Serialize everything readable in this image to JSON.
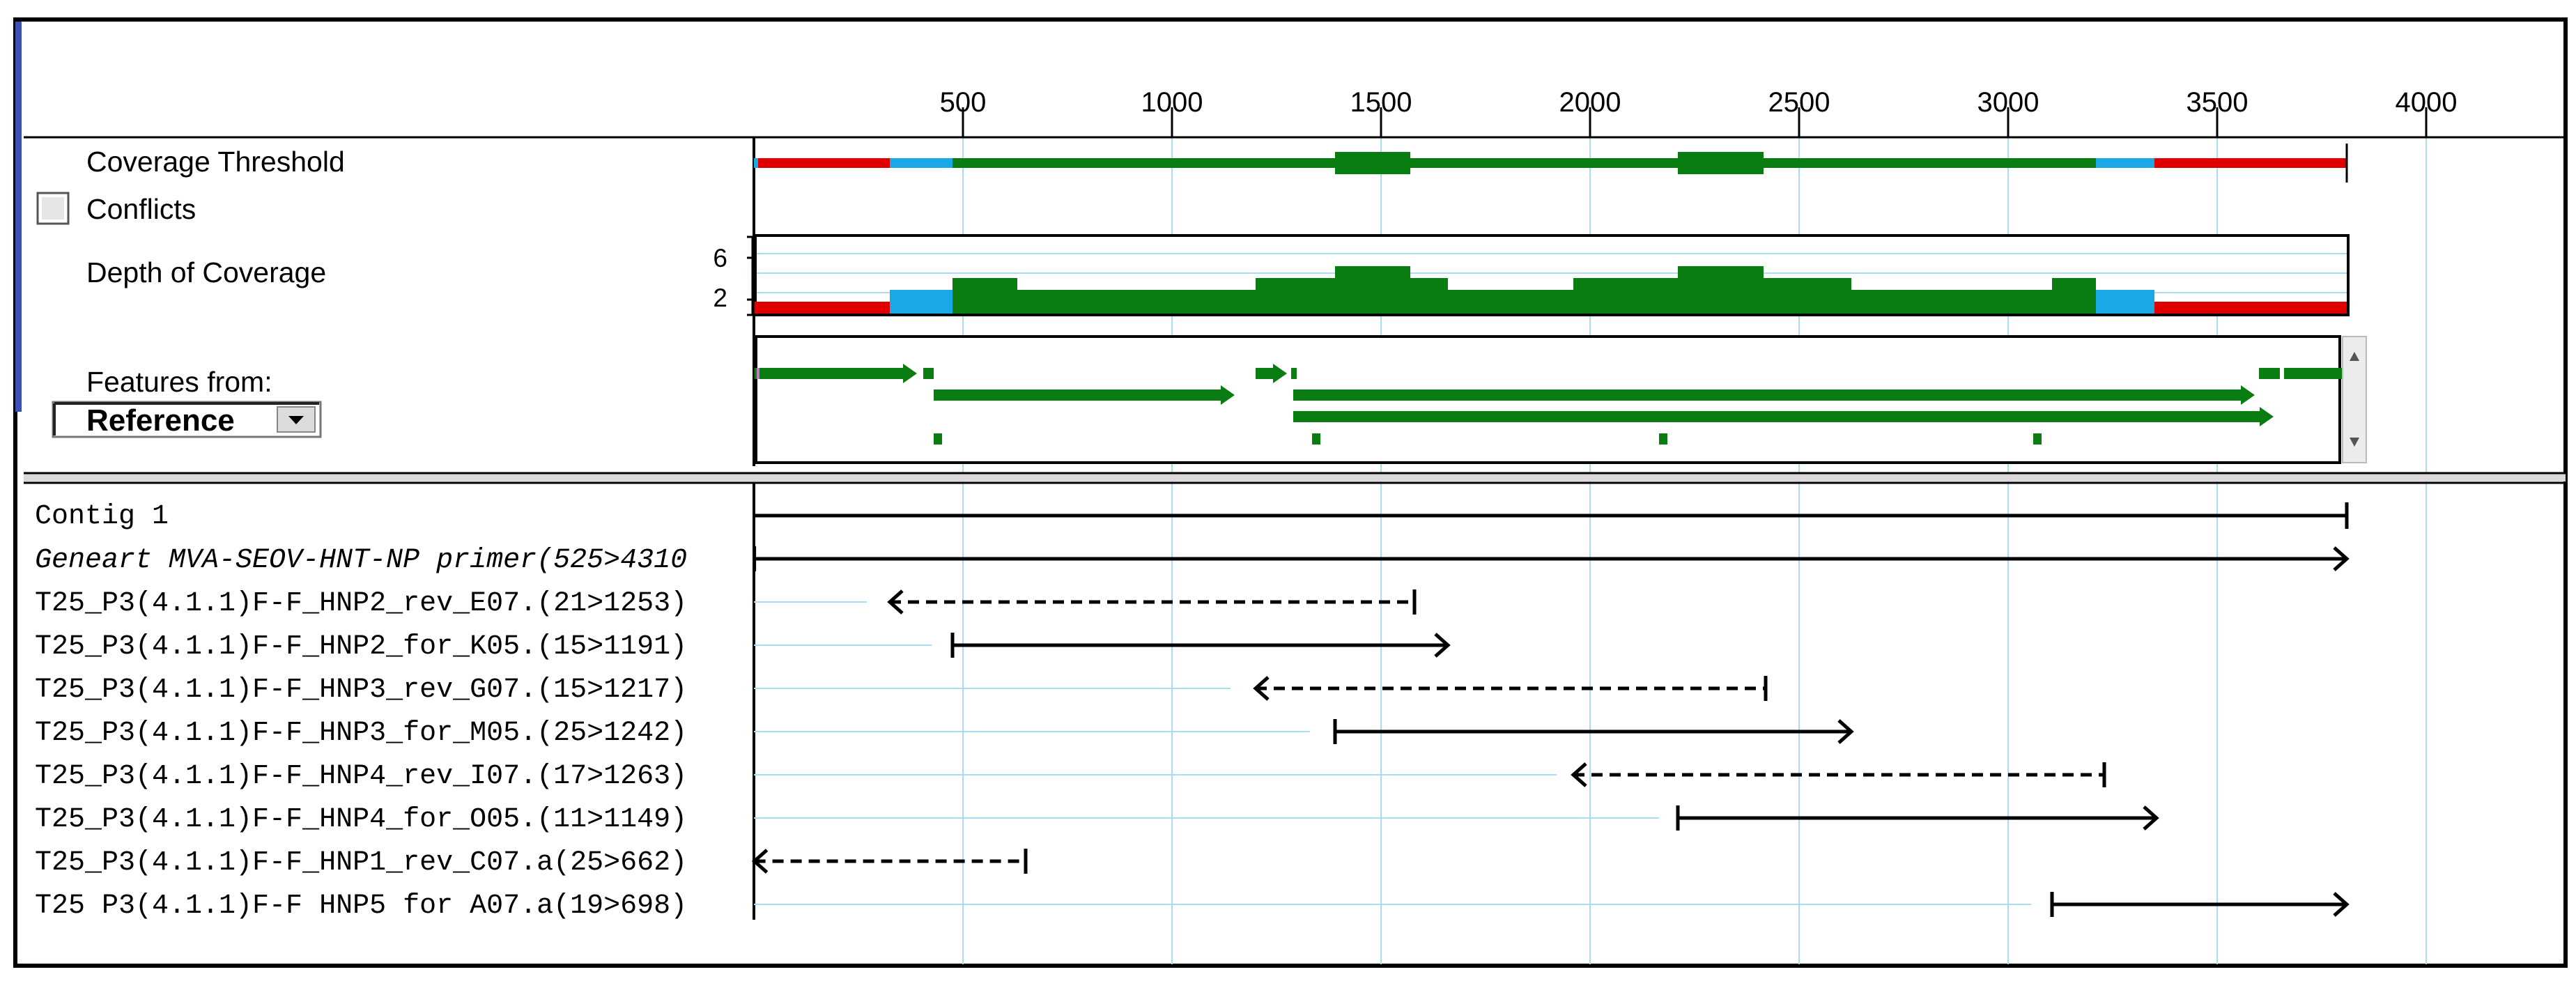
{
  "ruler": {
    "ticks": [
      500,
      1000,
      1500,
      2000,
      2500,
      3000,
      3500,
      4000
    ],
    "tick_labels": [
      "500",
      "1000",
      "1500",
      "2000",
      "2500",
      "3000",
      "3500",
      "4000"
    ]
  },
  "tracks": {
    "coverage_threshold_label": "Coverage Threshold",
    "conflicts_label": "Conflicts",
    "conflicts_checked": false,
    "depth_label": "Depth of Coverage",
    "depth_ticks": [
      "6",
      "2"
    ],
    "features_label": "Features from:",
    "features_source": "Reference"
  },
  "colors": {
    "high": "#0a7d12",
    "mid": "#19a9e6",
    "low": "#e00000",
    "grid": "#a9ddf3",
    "frame": "#000000"
  },
  "contig": {
    "label": "Contig 1",
    "start": 1,
    "end": 3810
  },
  "coverage_threshold": [
    {
      "start": 1,
      "end": 325,
      "level": "low"
    },
    {
      "start": 325,
      "end": 475,
      "level": "mid"
    },
    {
      "start": 475,
      "end": 1390,
      "level": "high"
    },
    {
      "start": 1390,
      "end": 1570,
      "level": "high-thick"
    },
    {
      "start": 1570,
      "end": 2210,
      "level": "high"
    },
    {
      "start": 2210,
      "end": 2415,
      "level": "high-thick"
    },
    {
      "start": 2415,
      "end": 3210,
      "level": "high"
    },
    {
      "start": 3210,
      "end": 3350,
      "level": "mid"
    },
    {
      "start": 3350,
      "end": 3810,
      "level": "low"
    }
  ],
  "depth_of_coverage": [
    {
      "start": 1,
      "end": 325,
      "depth": 1
    },
    {
      "start": 325,
      "end": 475,
      "depth": 2
    },
    {
      "start": 475,
      "end": 630,
      "depth": 3
    },
    {
      "start": 630,
      "end": 1200,
      "depth": 2
    },
    {
      "start": 1200,
      "end": 1390,
      "depth": 3
    },
    {
      "start": 1390,
      "end": 1570,
      "depth": 4
    },
    {
      "start": 1570,
      "end": 1660,
      "depth": 3
    },
    {
      "start": 1660,
      "end": 1960,
      "depth": 2
    },
    {
      "start": 1960,
      "end": 2210,
      "depth": 3
    },
    {
      "start": 2210,
      "end": 2415,
      "depth": 4
    },
    {
      "start": 2415,
      "end": 2625,
      "depth": 3
    },
    {
      "start": 2625,
      "end": 3105,
      "depth": 2
    },
    {
      "start": 3105,
      "end": 3210,
      "depth": 3
    },
    {
      "start": 3210,
      "end": 3350,
      "depth": 2
    },
    {
      "start": 3350,
      "end": 3810,
      "depth": 1
    }
  ],
  "features": [
    {
      "start": 1,
      "end": 390,
      "row": 0,
      "arrow": true
    },
    {
      "start": 405,
      "end": 430,
      "row": 0,
      "arrow": false
    },
    {
      "start": 430,
      "end": 1150,
      "row": 1,
      "arrow": true
    },
    {
      "start": 1200,
      "end": 1275,
      "row": 0,
      "arrow": true
    },
    {
      "start": 1285,
      "end": 1290,
      "row": 0,
      "arrow": false
    },
    {
      "start": 1290,
      "end": 3590,
      "row": 1,
      "arrow": true
    },
    {
      "start": 1290,
      "end": 3635,
      "row": 2,
      "arrow": true
    },
    {
      "start": 3600,
      "end": 3650,
      "row": 0,
      "arrow": false
    },
    {
      "start": 3660,
      "end": 3810,
      "row": 0,
      "arrow": false
    },
    {
      "start": 430,
      "end": 450,
      "row": 3,
      "arrow": false
    },
    {
      "start": 1335,
      "end": 1355,
      "row": 3,
      "arrow": false
    },
    {
      "start": 2165,
      "end": 2185,
      "row": 3,
      "arrow": false
    },
    {
      "start": 3060,
      "end": 3080,
      "row": 3,
      "arrow": false
    }
  ],
  "reads": [
    {
      "name": "Geneart MVA-SEOV-HNT-NP primer(525>4310",
      "italic": true,
      "start": 1,
      "end": 3810,
      "direction": "forward",
      "dashed": false
    },
    {
      "name": "T25_P3(4.1.1)F-F_HNP2_rev_E07.(21>1253)",
      "italic": false,
      "start": 325,
      "end": 1580,
      "direction": "reverse",
      "dashed": true
    },
    {
      "name": "T25_P3(4.1.1)F-F_HNP2_for_K05.(15>1191)",
      "italic": false,
      "start": 475,
      "end": 1660,
      "direction": "forward",
      "dashed": false
    },
    {
      "name": "T25_P3(4.1.1)F-F_HNP3_rev_G07.(15>1217)",
      "italic": false,
      "start": 1200,
      "end": 2420,
      "direction": "reverse",
      "dashed": true
    },
    {
      "name": "T25_P3(4.1.1)F-F_HNP3_for_M05.(25>1242)",
      "italic": false,
      "start": 1390,
      "end": 2625,
      "direction": "forward",
      "dashed": false
    },
    {
      "name": "T25_P3(4.1.1)F-F_HNP4_rev_I07.(17>1263)",
      "italic": false,
      "start": 1960,
      "end": 3230,
      "direction": "reverse",
      "dashed": true
    },
    {
      "name": "T25_P3(4.1.1)F-F_HNP4_for_O05.(11>1149)",
      "italic": false,
      "start": 2210,
      "end": 3355,
      "direction": "forward",
      "dashed": false
    },
    {
      "name": "T25_P3(4.1.1)F-F_HNP1_rev_C07.a(25>662)",
      "italic": false,
      "start": 1,
      "end": 650,
      "direction": "reverse",
      "dashed": true
    },
    {
      "name": "T25 P3(4.1.1)F-F HNP5 for A07.a(19>698)",
      "italic": false,
      "start": 3105,
      "end": 3810,
      "direction": "forward",
      "dashed": false
    }
  ],
  "read_unaligned_ends": [
    270,
    425,
    1140,
    1330,
    1920,
    2165,
    1,
    3055
  ]
}
